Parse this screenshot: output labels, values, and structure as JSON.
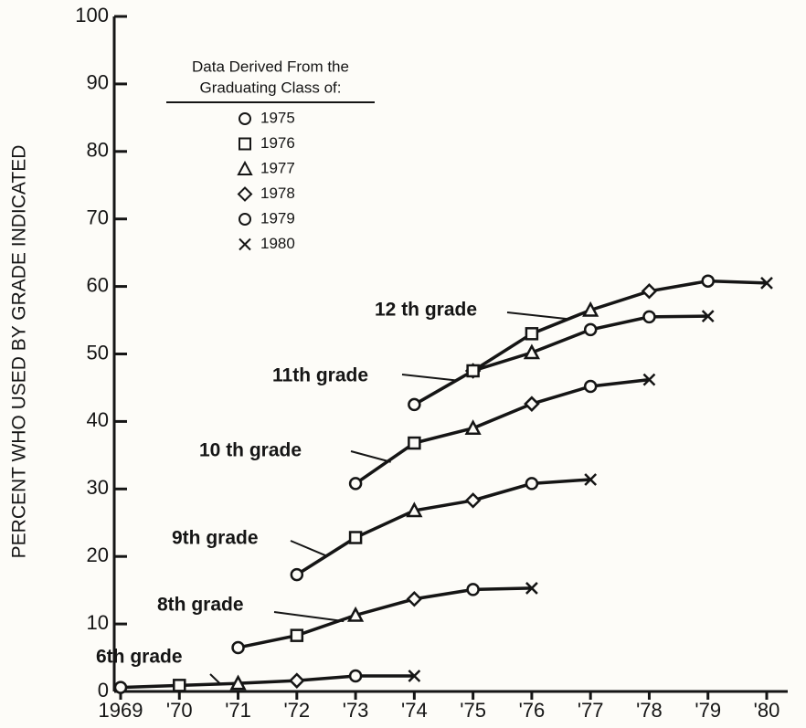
{
  "chart_data": {
    "type": "line",
    "y_label": "PERCENT WHO USED BY GRADE INDICATED",
    "legend_title": [
      "Data Derived From the",
      "Graduating Class of:"
    ],
    "legend": [
      {
        "label": "1975",
        "marker": "circle"
      },
      {
        "label": "1976",
        "marker": "square"
      },
      {
        "label": "1977",
        "marker": "triangle"
      },
      {
        "label": "1978",
        "marker": "diamond"
      },
      {
        "label": "1979",
        "marker": "circle"
      },
      {
        "label": "1980",
        "marker": "x"
      }
    ],
    "series": [
      {
        "name": "6th grade",
        "x": [
          1969,
          1970,
          1971,
          1972,
          1973,
          1974
        ],
        "values": [
          0.6,
          0.9,
          1.2,
          1.6,
          2.3,
          2.3
        ],
        "markers": [
          "circle",
          "square",
          "triangle",
          "diamond",
          "circle",
          "x"
        ]
      },
      {
        "name": "8th grade",
        "x": [
          1971,
          1972,
          1973,
          1974,
          1975,
          1976
        ],
        "values": [
          6.5,
          8.3,
          11.3,
          13.7,
          15.1,
          15.3
        ],
        "markers": [
          "circle",
          "square",
          "triangle",
          "diamond",
          "circle",
          "x"
        ]
      },
      {
        "name": "9th grade",
        "x": [
          1972,
          1973,
          1974,
          1975,
          1976,
          1977
        ],
        "values": [
          17.3,
          22.8,
          26.8,
          28.3,
          30.8,
          31.4
        ],
        "markers": [
          "circle",
          "square",
          "triangle",
          "diamond",
          "circle",
          "x"
        ]
      },
      {
        "name": "10 th grade",
        "x": [
          1973,
          1974,
          1975,
          1976,
          1977,
          1978
        ],
        "values": [
          30.8,
          36.8,
          39.0,
          42.6,
          45.2,
          46.2
        ],
        "markers": [
          "circle",
          "square",
          "triangle",
          "diamond",
          "circle",
          "x"
        ]
      },
      {
        "name": "11th grade",
        "x": [
          1975,
          1976,
          1977,
          1978,
          1979
        ],
        "values": [
          47.5,
          50.2,
          53.6,
          55.5,
          55.6
        ],
        "markers": [
          "diamond",
          "triangle",
          "circle",
          "circle",
          "x"
        ]
      },
      {
        "name": "12 th grade",
        "x": [
          1974,
          1975,
          1976,
          1977,
          1978,
          1979,
          1980
        ],
        "values": [
          42.5,
          47.5,
          53.0,
          56.5,
          59.3,
          60.8,
          60.5
        ],
        "markers": [
          "circle",
          "square",
          "square",
          "triangle",
          "diamond",
          "circle",
          "x"
        ]
      }
    ],
    "xlim": [
      1969,
      1980
    ],
    "xticks": [
      1969,
      {
        "value": 1970,
        "label": "'70"
      },
      {
        "value": 1971,
        "label": "'71"
      },
      {
        "value": 1972,
        "label": "'72"
      },
      {
        "value": 1973,
        "label": "'73"
      },
      {
        "value": 1974,
        "label": "'74"
      },
      {
        "value": 1975,
        "label": "'75"
      },
      {
        "value": 1976,
        "label": "'76"
      },
      {
        "value": 1977,
        "label": "'77"
      },
      {
        "value": 1978,
        "label": "'78"
      },
      {
        "value": 1979,
        "label": "'79"
      },
      {
        "value": 1980,
        "label": "'80"
      }
    ],
    "ylim": [
      0,
      100
    ],
    "yticks": [
      0,
      10,
      20,
      30,
      40,
      50,
      60,
      70,
      80,
      90,
      100
    ],
    "color": "#151515"
  }
}
